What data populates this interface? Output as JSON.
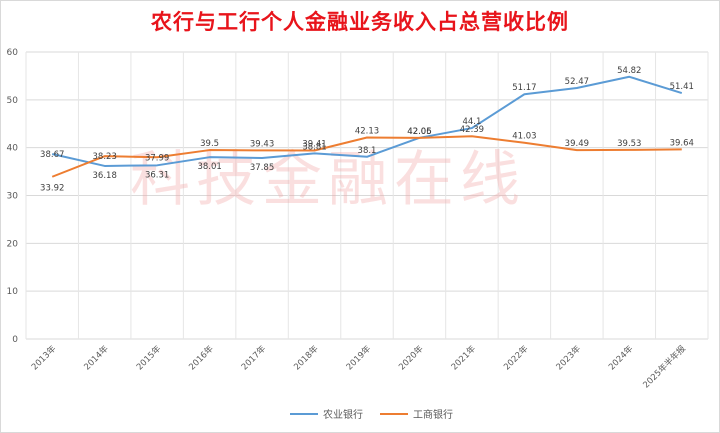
{
  "chart_data": {
    "type": "line",
    "title": "农行与工行个人金融业务收入占总营收比例",
    "watermark": "科技金融在线",
    "categories": [
      "2013年",
      "2014年",
      "2015年",
      "2016年",
      "2017年",
      "2018年",
      "2019年",
      "2020年",
      "2021年",
      "2022年",
      "2023年",
      "2024年",
      "2025年半年报"
    ],
    "ylim": [
      0,
      60
    ],
    "yticks": [
      0,
      10,
      20,
      30,
      40,
      50,
      60
    ],
    "grid": true,
    "legend_position": "bottom",
    "series": [
      {
        "name": "农业银行",
        "color": "#5b9bd5",
        "values": [
          38.67,
          36.18,
          36.31,
          38.01,
          37.85,
          38.81,
          38.1,
          42.06,
          44.1,
          51.17,
          52.47,
          54.82,
          51.41
        ],
        "labels": [
          "38.67",
          "36.18",
          "36.31",
          "38.01",
          "37.85",
          "38.81",
          "38.1",
          "42.06",
          "44.1",
          "51.17",
          "52.47",
          "54.82",
          "51.41"
        ]
      },
      {
        "name": "工商银行",
        "color": "#ed7d31",
        "values": [
          33.92,
          38.23,
          37.99,
          39.5,
          39.43,
          39.41,
          42.13,
          42.05,
          42.39,
          41.03,
          39.49,
          39.53,
          39.64
        ],
        "labels": [
          "33.92",
          "38.23",
          "37.99",
          "39.5",
          "39.43",
          "39.41",
          "42.13",
          "42.05",
          "42.39",
          "41.03",
          "39.49",
          "39.53",
          "39.64"
        ]
      }
    ]
  }
}
